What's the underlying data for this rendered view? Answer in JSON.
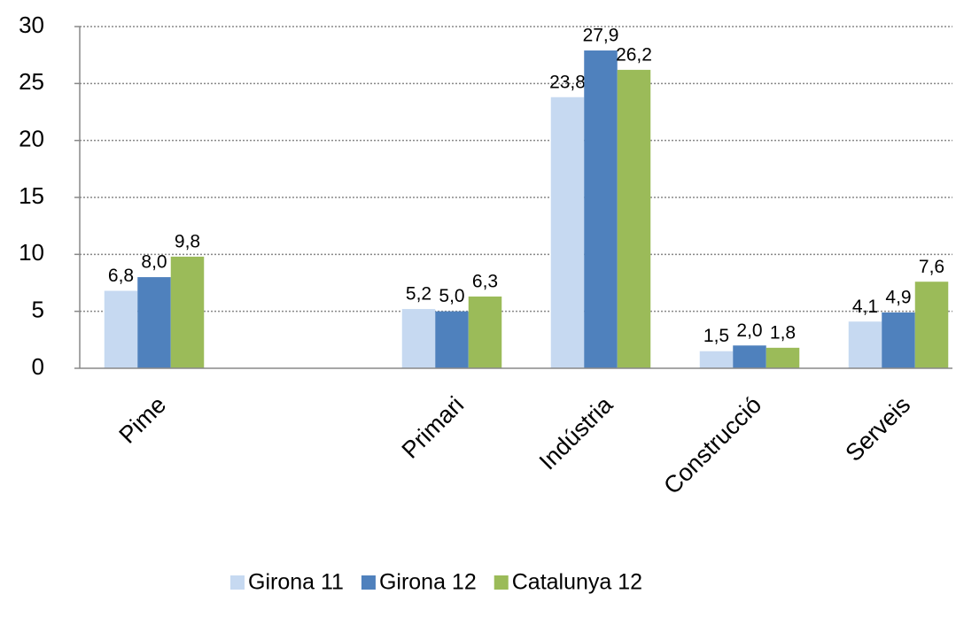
{
  "chart_data": {
    "type": "bar",
    "categories": [
      "Pime",
      null,
      "Primari",
      "Indústria",
      "Construcció",
      "Serveis"
    ],
    "series": [
      {
        "name": "Girona 11",
        "color": "#c6d9f1",
        "values": [
          6.8,
          null,
          5.2,
          23.8,
          1.5,
          4.1
        ],
        "value_labels": [
          "6,8",
          null,
          "5,2",
          "23,8",
          "1,5",
          "4,1"
        ]
      },
      {
        "name": "Girona 12",
        "color": "#4f81bd",
        "values": [
          8.0,
          null,
          5.0,
          27.9,
          2.0,
          4.9
        ],
        "value_labels": [
          "8,0",
          null,
          "5,0",
          "27,9",
          "2,0",
          "4,9"
        ]
      },
      {
        "name": "Catalunya 12",
        "color": "#9bbb59",
        "values": [
          9.8,
          null,
          6.3,
          26.2,
          1.8,
          7.6
        ],
        "value_labels": [
          "9,8",
          null,
          "6,3",
          "26,2",
          "1,8",
          "7,6"
        ]
      }
    ],
    "ylim": [
      0,
      30
    ],
    "yticks": [
      0,
      5,
      10,
      15,
      20,
      25,
      30
    ],
    "grid": true,
    "legend": "bottom"
  }
}
